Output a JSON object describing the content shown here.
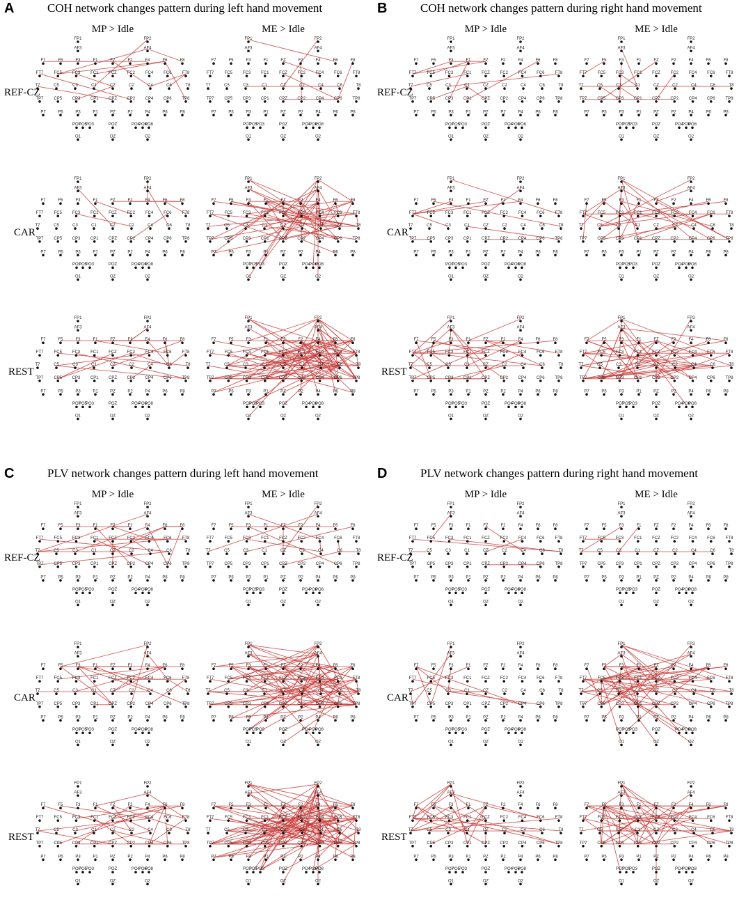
{
  "figure": {
    "panels": [
      {
        "letter": "A",
        "title": "COH network changes pattern during left hand movement",
        "columns": [
          "MP > Idle",
          "ME > Idle"
        ],
        "rows": [
          "REF-CZ",
          "CAR",
          "REST"
        ],
        "density": [
          [
            14,
            9
          ],
          [
            10,
            70
          ],
          [
            20,
            110
          ]
        ],
        "side": "right"
      },
      {
        "letter": "B",
        "title": "COH network changes pattern during right hand movement",
        "columns": [
          "MP > Idle",
          "ME > Idle"
        ],
        "rows": [
          "REF-CZ",
          "CAR",
          "REST"
        ],
        "density": [
          [
            10,
            12
          ],
          [
            10,
            30
          ],
          [
            30,
            55
          ]
        ],
        "side": "left"
      },
      {
        "letter": "C",
        "title": "PLV network changes pattern during left hand movement",
        "columns": [
          "MP > Idle",
          "ME > Idle"
        ],
        "rows": [
          "REF-CZ",
          "CAR",
          "REST"
        ],
        "density": [
          [
            22,
            14
          ],
          [
            20,
            110
          ],
          [
            28,
            140
          ]
        ],
        "side": "right"
      },
      {
        "letter": "D",
        "title": "PLV network changes pattern during right hand movement",
        "columns": [
          "MP > Idle",
          "ME > Idle"
        ],
        "rows": [
          "REF-CZ",
          "CAR",
          "REST"
        ],
        "density": [
          [
            10,
            4
          ],
          [
            15,
            70
          ],
          [
            30,
            60
          ]
        ],
        "side": "left"
      }
    ],
    "electrodes": [
      "FP1",
      "FP2",
      "AF3",
      "AF4",
      "F7",
      "F5",
      "F3",
      "F1",
      "FZ",
      "F2",
      "F4",
      "F6",
      "F8",
      "FT7",
      "FC5",
      "FC3",
      "FC1",
      "FCZ",
      "FC2",
      "FC4",
      "FC6",
      "FT8",
      "T7",
      "C5",
      "C3",
      "C1",
      "CZ",
      "C2",
      "C4",
      "C6",
      "T8",
      "TP7",
      "CP5",
      "CP3",
      "CP1",
      "CPZ",
      "CP2",
      "CP4",
      "CP6",
      "TP8",
      "P7",
      "P5",
      "P3",
      "P1",
      "PZ",
      "P2",
      "P4",
      "P6",
      "P8",
      "PO7",
      "PO5",
      "PO3",
      "POZ",
      "PO4",
      "PO6",
      "PO8",
      "O1",
      "OZ",
      "O2"
    ],
    "colors": {
      "edge": "#c8403d",
      "node": "#111111"
    }
  }
}
